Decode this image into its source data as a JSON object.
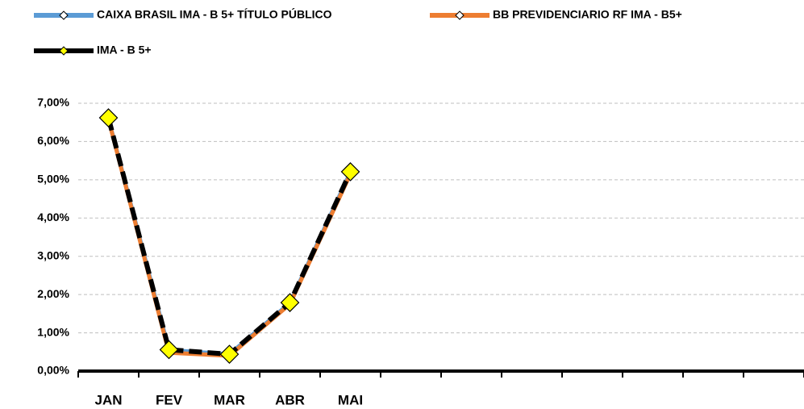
{
  "chart_data": {
    "type": "line",
    "categories": [
      "JAN",
      "FEV",
      "MAR",
      "ABR",
      "MAI",
      null,
      null,
      null,
      null,
      null,
      null,
      null
    ],
    "series": [
      {
        "name": "CAIXA BRASIL IMA - B 5+ TÍTULO PÚBLICO",
        "color": "#5b9bd5",
        "values": [
          6.6,
          0.55,
          0.44,
          1.78,
          5.2,
          null,
          null,
          null,
          null,
          null,
          null,
          null
        ]
      },
      {
        "name": "BB PREVIDENCIARIO RF IMA - B5+",
        "color": "#ed7d31",
        "values": [
          6.58,
          0.48,
          0.4,
          1.75,
          5.15,
          null,
          null,
          null,
          null,
          null,
          null,
          null
        ]
      },
      {
        "name": "IMA - B 5+",
        "color": "#000000",
        "line_style": "dashed",
        "marker_color": "#ffff00",
        "values": [
          6.62,
          0.56,
          0.44,
          1.79,
          5.21,
          null,
          null,
          null,
          null,
          null,
          null,
          null
        ]
      }
    ],
    "ylim": [
      0,
      7
    ],
    "yticks": [
      {
        "value": 0,
        "label": "0,00%"
      },
      {
        "value": 1,
        "label": "1,00%"
      },
      {
        "value": 2,
        "label": "2,00%"
      },
      {
        "value": 3,
        "label": "3,00%"
      },
      {
        "value": 4,
        "label": "4,00%"
      },
      {
        "value": 5,
        "label": "5,00%"
      },
      {
        "value": 6,
        "label": "6,00%"
      },
      {
        "value": 7,
        "label": "7,00%"
      }
    ],
    "grid": true,
    "legend": "top"
  }
}
